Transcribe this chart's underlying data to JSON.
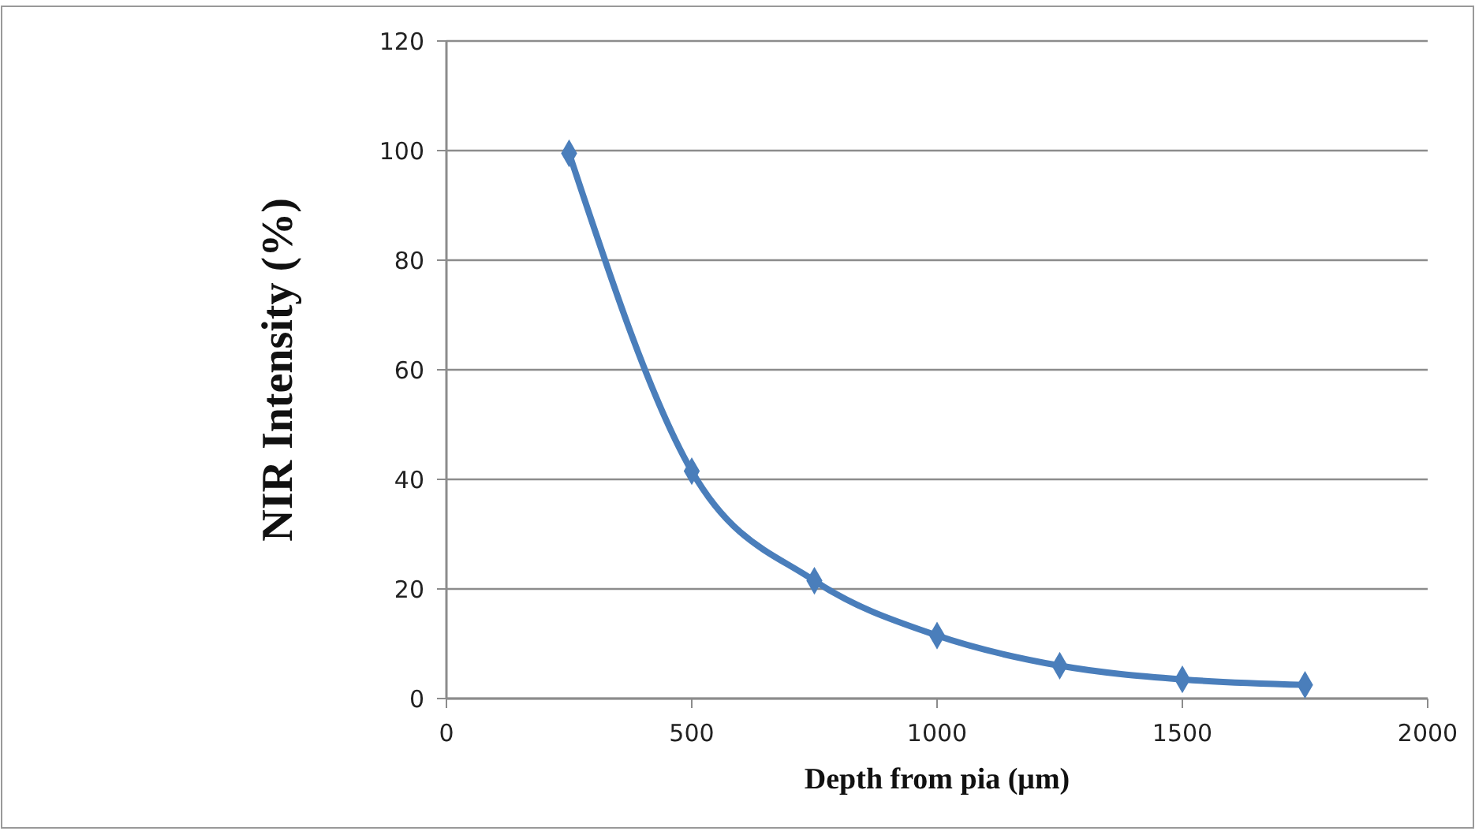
{
  "chart_data": {
    "type": "line",
    "xlabel": "Depth from pia (μm)",
    "ylabel": "NIR Intensity (%)",
    "x": [
      250,
      500,
      750,
      1000,
      1250,
      1500,
      1750
    ],
    "series": [
      {
        "color": "#4a7ebb",
        "values": [
          99.5,
          41.5,
          21.5,
          11.5,
          6,
          3.5,
          2.5
        ]
      }
    ],
    "xlim": [
      0,
      2000
    ],
    "xticks": [
      0,
      500,
      1000,
      1500,
      2000
    ],
    "ylim": [
      0,
      120
    ],
    "yticks": [
      0,
      20,
      40,
      60,
      80,
      100,
      120
    ],
    "grid": "y",
    "marker": "diamond",
    "line_style": "solid"
  }
}
